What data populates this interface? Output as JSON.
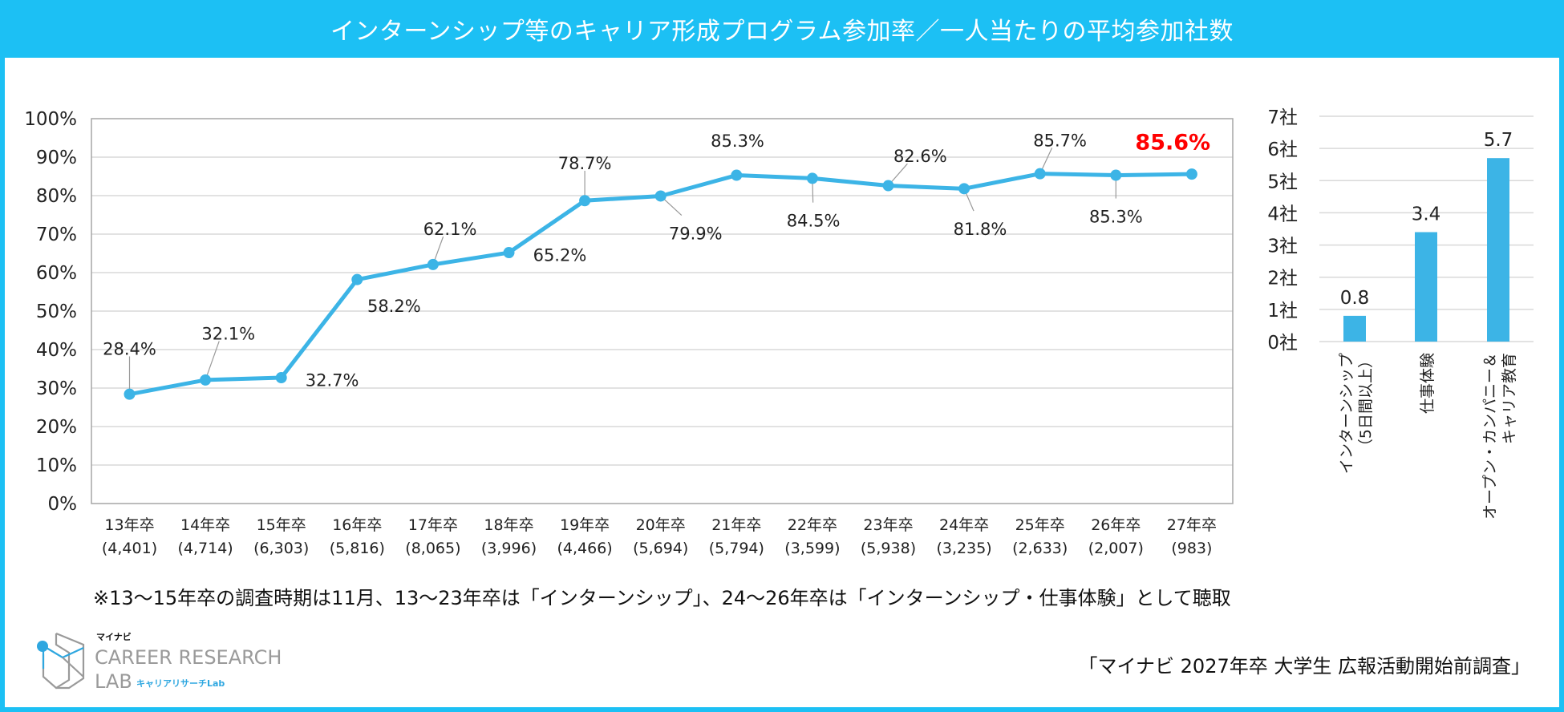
{
  "title": "インターンシップ等のキャリア形成プログラム参加率／一人当たりの平均参加社数",
  "chart_data": [
    {
      "type": "line",
      "title": "インターンシップ等のキャリア形成プログラム参加率",
      "ylim": [
        0,
        100
      ],
      "yticks": [
        "0%",
        "10%",
        "20%",
        "30%",
        "40%",
        "50%",
        "60%",
        "70%",
        "80%",
        "90%",
        "100%"
      ],
      "categories": [
        "13年卒",
        "14年卒",
        "15年卒",
        "16年卒",
        "17年卒",
        "18年卒",
        "19年卒",
        "20年卒",
        "21年卒",
        "22年卒",
        "23年卒",
        "24年卒",
        "25年卒",
        "26年卒",
        "27年卒"
      ],
      "sample_sizes": [
        "(4,401)",
        "(4,714)",
        "(6,303)",
        "(5,816)",
        "(8,065)",
        "(3,996)",
        "(4,466)",
        "(5,694)",
        "(5,794)",
        "(3,599)",
        "(5,938)",
        "(3,235)",
        "(2,633)",
        "(2,007)",
        "(983)"
      ],
      "values": [
        28.4,
        32.1,
        32.7,
        58.2,
        62.1,
        65.2,
        78.7,
        79.9,
        85.3,
        84.5,
        82.6,
        81.8,
        85.7,
        85.3,
        85.6
      ],
      "labels": [
        "28.4%",
        "32.1%",
        "32.7%",
        "58.2%",
        "62.1%",
        "65.2%",
        "78.7%",
        "79.9%",
        "85.3%",
        "84.5%",
        "82.6%",
        "81.8%",
        "85.7%",
        "85.3%",
        "85.6%"
      ],
      "highlight_index": 14,
      "grid": true,
      "line_color": "#3cb4e6",
      "highlight_color": "#ff0000"
    },
    {
      "type": "bar",
      "title": "一人当たりの平均参加社数",
      "ylim": [
        0,
        7
      ],
      "yticks": [
        "0社",
        "1社",
        "2社",
        "3社",
        "4社",
        "5社",
        "6社",
        "7社"
      ],
      "categories": [
        [
          "インターンシップ",
          "（5日間以上）"
        ],
        [
          "仕事体験"
        ],
        [
          "オープン・カンパニー＆",
          "キャリア教育"
        ]
      ],
      "values": [
        0.8,
        3.4,
        5.7
      ],
      "labels": [
        "0.8",
        "3.4",
        "5.7"
      ],
      "bar_color": "#3cb4e6",
      "grid": true
    }
  ],
  "footnote": "※13～15年卒の調査時期は11月、13～23年卒は「インターンシップ」、24～26年卒は「インターンシップ・仕事体験」として聴取",
  "source": "「マイナビ 2027年卒 大学生 広報活動開始前調査」",
  "logo": {
    "brand": "マイナビ",
    "line1": "CAREER RESEARCH",
    "line2": "LAB",
    "sub": "キャリアリサーチLab"
  },
  "colors": {
    "accent": "#1cc0f4",
    "logo_blue": "#2ea7e0",
    "logo_gray": "#9a9a9a"
  }
}
